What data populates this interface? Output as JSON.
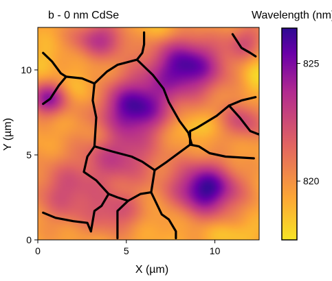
{
  "chart_data": {
    "type": "heatmap",
    "title": "b - 0 nm CdSe",
    "xlabel": "X (µm)",
    "ylabel": "Y (µm)",
    "colorbar_label": "Wavelength (nm)",
    "xlim": [
      0,
      12.5
    ],
    "ylim": [
      0,
      12.5
    ],
    "xticks": [
      0,
      5,
      10
    ],
    "yticks": [
      0,
      5,
      10
    ],
    "colorbar_range": [
      817.5,
      826.5
    ],
    "colorbar_ticks": [
      820,
      825
    ],
    "colormap": "plasma",
    "colormap_stops": [
      "#f7e425",
      "#fca636",
      "#e16462",
      "#b12a90",
      "#6a00a8",
      "#2e0b92"
    ],
    "background_value": 819.3,
    "hotspots": [
      {
        "x": 9.5,
        "y": 3.0,
        "value": 826.3,
        "sx": 1.3,
        "sy": 1.1
      },
      {
        "x": 5.5,
        "y": 7.8,
        "value": 825.8,
        "sx": 1.4,
        "sy": 1.2
      },
      {
        "x": 8.4,
        "y": 10.2,
        "value": 825.9,
        "sx": 1.5,
        "sy": 1.2
      },
      {
        "x": 0.6,
        "y": 8.3,
        "value": 824.5,
        "sx": 0.8,
        "sy": 0.7
      },
      {
        "x": 3.5,
        "y": 11.8,
        "value": 823.3,
        "sx": 1.1,
        "sy": 0.8
      },
      {
        "x": 1.6,
        "y": 2.8,
        "value": 822.3,
        "sx": 1.3,
        "sy": 1.3
      },
      {
        "x": 4.6,
        "y": 4.8,
        "value": 822.8,
        "sx": 1.5,
        "sy": 1.2
      },
      {
        "x": 4.5,
        "y": 1.6,
        "value": 822.2,
        "sx": 1.2,
        "sy": 0.9
      },
      {
        "x": 11.6,
        "y": 7.0,
        "value": 822.4,
        "sx": 0.9,
        "sy": 0.8
      },
      {
        "x": 11.8,
        "y": 11.6,
        "value": 822.2,
        "sx": 0.8,
        "sy": 0.8
      },
      {
        "x": 8.6,
        "y": 6.6,
        "value": 818.0,
        "sx": 0.9,
        "sy": 0.5
      },
      {
        "x": 12.3,
        "y": 10.0,
        "value": 817.8,
        "sx": 0.6,
        "sy": 1.0
      },
      {
        "x": 2.4,
        "y": 8.8,
        "value": 818.3,
        "sx": 0.9,
        "sy": 0.7
      },
      {
        "x": 6.5,
        "y": 12.3,
        "value": 818.3,
        "sx": 1.0,
        "sy": 0.5
      },
      {
        "x": 3.8,
        "y": 6.2,
        "value": 818.6,
        "sx": 0.7,
        "sy": 0.5
      },
      {
        "x": 0.4,
        "y": 10.5,
        "value": 818.6,
        "sx": 0.6,
        "sy": 0.8
      },
      {
        "x": 11.0,
        "y": 0.4,
        "value": 818.3,
        "sx": 1.0,
        "sy": 0.5
      },
      {
        "x": 6.5,
        "y": 1.3,
        "value": 818.7,
        "sx": 1.2,
        "sy": 0.8
      },
      {
        "x": 10.8,
        "y": 4.5,
        "value": 819.0,
        "sx": 0.8,
        "sy": 0.9
      }
    ],
    "grain_boundaries": [
      [
        [
          0.3,
          11.0
        ],
        [
          0.8,
          10.5
        ],
        [
          1.3,
          9.8
        ],
        [
          1.6,
          9.6
        ]
      ],
      [
        [
          0.3,
          8.0
        ],
        [
          0.7,
          8.3
        ],
        [
          1.2,
          9.1
        ],
        [
          1.6,
          9.6
        ]
      ],
      [
        [
          1.6,
          9.6
        ],
        [
          2.5,
          9.5
        ],
        [
          3.2,
          9.2
        ]
      ],
      [
        [
          3.2,
          9.2
        ],
        [
          3.9,
          9.9
        ],
        [
          4.5,
          10.3
        ],
        [
          5.6,
          10.6
        ],
        [
          5.9,
          11.0
        ],
        [
          6.0,
          11.5
        ],
        [
          6.0,
          12.2
        ]
      ],
      [
        [
          5.6,
          10.6
        ],
        [
          6.5,
          9.7
        ],
        [
          7.1,
          8.9
        ],
        [
          7.4,
          8.1
        ],
        [
          8.0,
          7.0
        ],
        [
          8.5,
          6.3
        ],
        [
          8.7,
          5.6
        ]
      ],
      [
        [
          3.2,
          9.2
        ],
        [
          3.1,
          8.2
        ],
        [
          3.3,
          7.2
        ],
        [
          3.2,
          5.5
        ]
      ],
      [
        [
          3.2,
          5.5
        ],
        [
          4.2,
          5.2
        ],
        [
          5.3,
          4.9
        ],
        [
          5.9,
          4.6
        ],
        [
          6.6,
          4.1
        ],
        [
          7.3,
          4.6
        ],
        [
          8.6,
          5.6
        ]
      ],
      [
        [
          8.6,
          5.6
        ],
        [
          8.6,
          6.4
        ],
        [
          9.0,
          6.6
        ],
        [
          10.1,
          7.3
        ],
        [
          10.8,
          7.9
        ],
        [
          11.5,
          8.2
        ],
        [
          12.3,
          8.4
        ]
      ],
      [
        [
          10.8,
          7.9
        ],
        [
          11.4,
          7.2
        ],
        [
          12.0,
          6.4
        ],
        [
          12.5,
          6.2
        ]
      ],
      [
        [
          8.6,
          5.6
        ],
        [
          9.1,
          5.5
        ],
        [
          9.7,
          5.1
        ],
        [
          10.6,
          4.9
        ],
        [
          12.2,
          4.8
        ]
      ],
      [
        [
          3.2,
          5.5
        ],
        [
          2.8,
          4.9
        ],
        [
          2.6,
          4.0
        ],
        [
          3.3,
          3.5
        ],
        [
          4.0,
          2.7
        ],
        [
          4.5,
          2.5
        ],
        [
          5.1,
          2.3
        ]
      ],
      [
        [
          5.1,
          2.3
        ],
        [
          5.8,
          2.7
        ],
        [
          6.4,
          2.8
        ],
        [
          6.6,
          4.1
        ]
      ],
      [
        [
          6.4,
          2.8
        ],
        [
          7.0,
          1.5
        ],
        [
          7.4,
          1.2
        ],
        [
          7.8,
          0.5
        ],
        [
          7.8,
          0.1
        ]
      ],
      [
        [
          5.1,
          2.3
        ],
        [
          4.5,
          1.7
        ],
        [
          4.5,
          0.1
        ]
      ],
      [
        [
          4.0,
          2.7
        ],
        [
          3.6,
          2.0
        ],
        [
          3.2,
          1.7
        ],
        [
          3.0,
          0.5
        ]
      ],
      [
        [
          0.3,
          1.6
        ],
        [
          1.0,
          1.3
        ],
        [
          2.0,
          1.1
        ],
        [
          2.8,
          1.0
        ],
        [
          3.0,
          0.5
        ]
      ],
      [
        [
          11.0,
          12.1
        ],
        [
          11.5,
          11.3
        ],
        [
          12.0,
          11.0
        ],
        [
          12.3,
          10.8
        ]
      ]
    ]
  }
}
